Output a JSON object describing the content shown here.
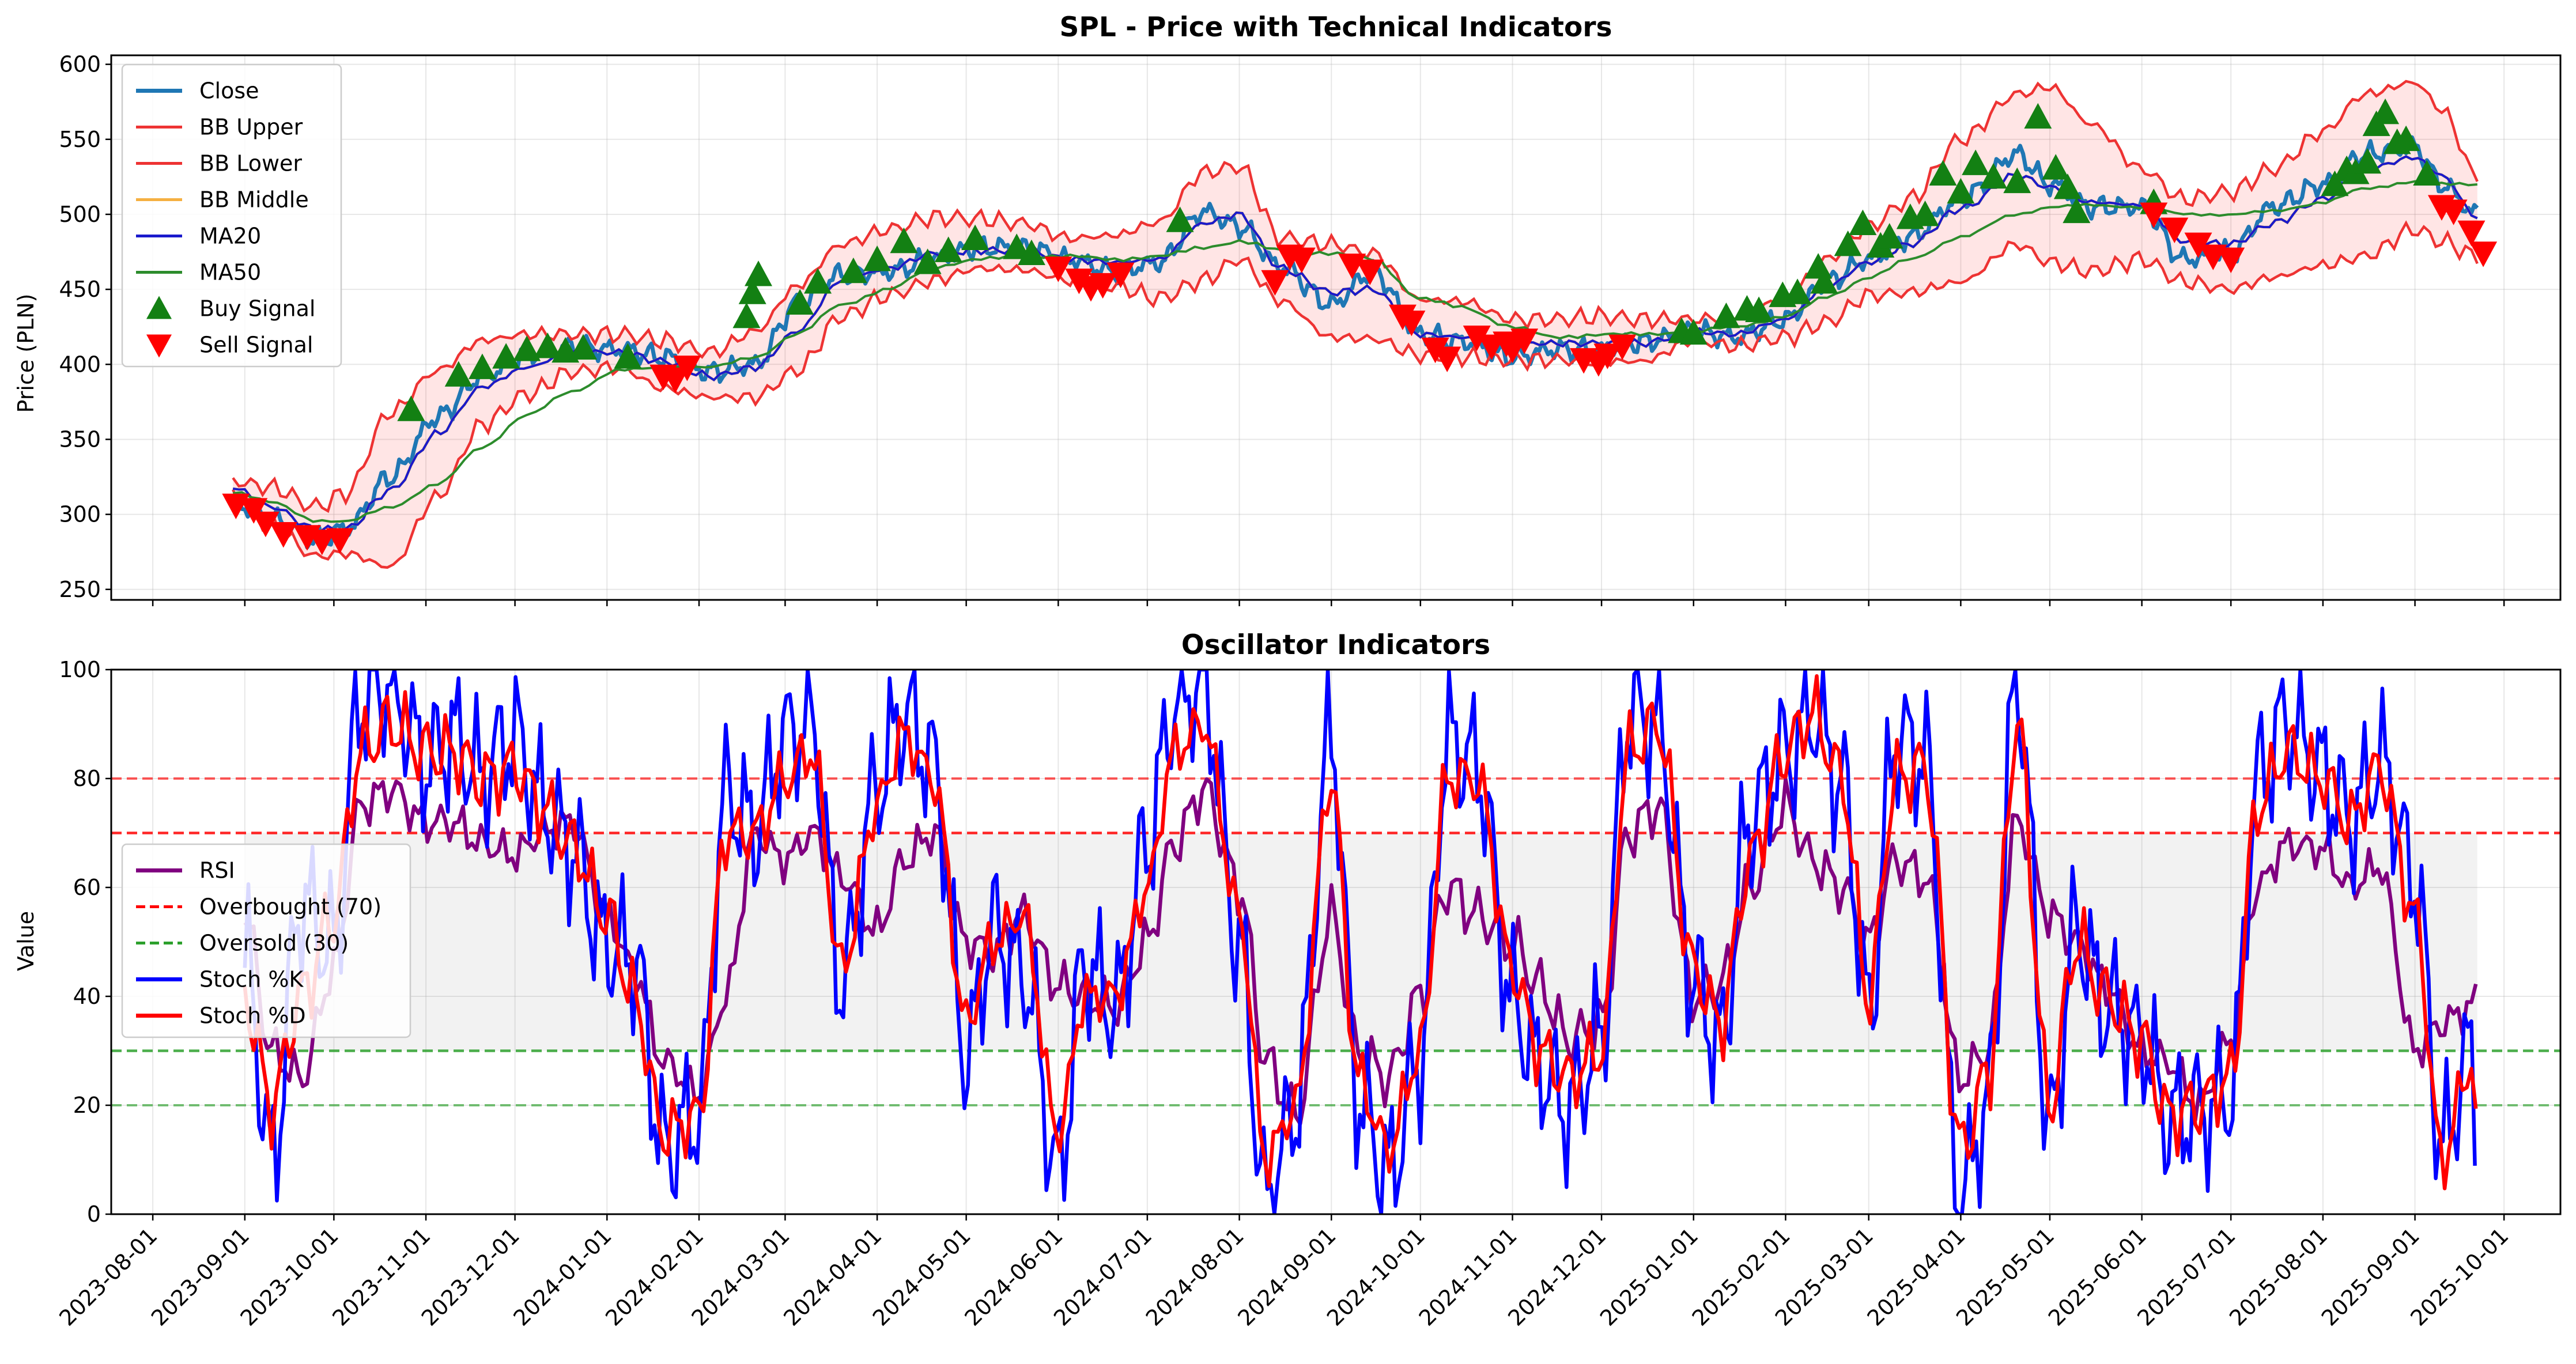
{
  "chart_data": [
    {
      "type": "line",
      "title": "SPL - Price with Technical Indicators",
      "ylabel": "Price (PLN)",
      "xlim": [
        "2023-07-18",
        "2025-10-20"
      ],
      "ylim": [
        243,
        606
      ],
      "yticks": [
        250,
        300,
        350,
        400,
        450,
        500,
        550,
        600
      ],
      "grid": true,
      "legend": "top-left",
      "anchors": {
        "dates": [
          "2023-08-28",
          "2023-09-10",
          "2023-09-25",
          "2023-10-05",
          "2023-10-20",
          "2023-11-05",
          "2023-11-20",
          "2023-12-05",
          "2023-12-20",
          "2024-01-05",
          "2024-01-20",
          "2024-02-05",
          "2024-02-20",
          "2024-03-05",
          "2024-03-20",
          "2024-04-05",
          "2024-04-20",
          "2024-05-05",
          "2024-05-20",
          "2024-06-05",
          "2024-06-20",
          "2024-07-05",
          "2024-07-20",
          "2024-08-01",
          "2024-08-15",
          "2024-09-01",
          "2024-09-15",
          "2024-10-01",
          "2024-10-15",
          "2024-11-01",
          "2024-11-15",
          "2024-12-01",
          "2024-12-15",
          "2025-01-01",
          "2025-01-15",
          "2025-02-01",
          "2025-02-15",
          "2025-03-01",
          "2025-03-15",
          "2025-04-01",
          "2025-04-20",
          "2025-05-01",
          "2025-05-15",
          "2025-06-01",
          "2025-06-15",
          "2025-07-01",
          "2025-07-15",
          "2025-08-01",
          "2025-08-15",
          "2025-09-01",
          "2025-09-10",
          "2025-09-22"
        ],
        "close": [
          308,
          298,
          283,
          290,
          325,
          365,
          392,
          407,
          411,
          410,
          405,
          395,
          400,
          440,
          460,
          462,
          470,
          478,
          478,
          470,
          462,
          468,
          502,
          492,
          465,
          440,
          462,
          420,
          415,
          405,
          410,
          410,
          415,
          422,
          418,
          430,
          455,
          470,
          485,
          510,
          540,
          520,
          505,
          505,
          470,
          475,
          505,
          520,
          540,
          545,
          520,
          500
        ],
        "bb_upper": [
          322,
          318,
          305,
          314,
          368,
          396,
          416,
          420,
          420,
          420,
          416,
          408,
          422,
          452,
          480,
          490,
          498,
          497,
          494,
          484,
          486,
          495,
          528,
          532,
          484,
          480,
          474,
          443,
          442,
          430,
          430,
          432,
          430,
          430,
          432,
          444,
          470,
          492,
          510,
          550,
          580,
          585,
          560,
          530,
          510,
          515,
          530,
          555,
          580,
          588,
          570,
          525
        ],
        "bb_lower": [
          313,
          292,
          272,
          274,
          265,
          312,
          360,
          380,
          395,
          398,
          384,
          378,
          378,
          396,
          432,
          446,
          456,
          464,
          463,
          456,
          452,
          444,
          456,
          470,
          442,
          418,
          417,
          406,
          405,
          403,
          403,
          402,
          402,
          416,
          412,
          418,
          428,
          446,
          448,
          455,
          480,
          468,
          462,
          470,
          455,
          450,
          458,
          466,
          472,
          490,
          482,
          472
        ],
        "ma20": [
          318,
          305,
          290,
          290,
          316,
          354,
          385,
          398,
          408,
          408,
          402,
          392,
          398,
          422,
          456,
          464,
          474,
          476,
          476,
          470,
          468,
          470,
          494,
          500,
          464,
          448,
          450,
          420,
          418,
          414,
          414,
          414,
          414,
          422,
          420,
          430,
          452,
          468,
          480,
          504,
          526,
          518,
          508,
          506,
          482,
          480,
          494,
          510,
          530,
          538,
          526,
          498
        ],
        "ma50": [
          315,
          308,
          296,
          295,
          305,
          320,
          345,
          366,
          382,
          396,
          398,
          398,
          405,
          420,
          440,
          450,
          465,
          470,
          472,
          472,
          470,
          472,
          478,
          482,
          476,
          474,
          470,
          444,
          438,
          425,
          418,
          420,
          420,
          422,
          425,
          432,
          445,
          458,
          470,
          485,
          500,
          505,
          506,
          505,
          500,
          500,
          502,
          508,
          517,
          522,
          520,
          520
        ],
        "buy": [
          [
            "2023-10-27",
            370
          ],
          [
            "2023-11-12",
            393
          ],
          [
            "2023-11-20",
            398
          ],
          [
            "2023-11-28",
            405
          ],
          [
            "2023-12-05",
            410
          ],
          [
            "2023-12-12",
            412
          ],
          [
            "2023-12-18",
            409
          ],
          [
            "2023-12-24",
            411
          ],
          [
            "2024-01-08",
            405
          ],
          [
            "2024-02-17",
            432
          ],
          [
            "2024-02-19",
            448
          ],
          [
            "2024-02-21",
            460
          ],
          [
            "2024-03-06",
            441
          ],
          [
            "2024-03-12",
            455
          ],
          [
            "2024-03-24",
            462
          ],
          [
            "2024-04-01",
            470
          ],
          [
            "2024-04-10",
            482
          ],
          [
            "2024-04-18",
            468
          ],
          [
            "2024-04-25",
            476
          ],
          [
            "2024-05-04",
            484
          ],
          [
            "2024-05-18",
            478
          ],
          [
            "2024-05-23",
            474
          ],
          [
            "2024-07-12",
            496
          ],
          [
            "2024-12-28",
            422
          ],
          [
            "2025-01-01",
            421
          ],
          [
            "2025-01-12",
            432
          ],
          [
            "2025-01-19",
            437
          ],
          [
            "2025-01-23",
            436
          ],
          [
            "2025-01-31",
            446
          ],
          [
            "2025-02-05",
            448
          ],
          [
            "2025-02-12",
            465
          ],
          [
            "2025-02-14",
            455
          ],
          [
            "2025-02-22",
            480
          ],
          [
            "2025-02-27",
            494
          ],
          [
            "2025-03-05",
            479
          ],
          [
            "2025-03-08",
            485
          ],
          [
            "2025-03-15",
            498
          ],
          [
            "2025-03-20",
            500
          ],
          [
            "2025-03-26",
            527
          ],
          [
            "2025-04-01",
            515
          ],
          [
            "2025-04-06",
            534
          ],
          [
            "2025-04-12",
            525
          ],
          [
            "2025-04-20",
            522
          ],
          [
            "2025-04-27",
            565
          ],
          [
            "2025-05-03",
            531
          ],
          [
            "2025-05-07",
            518
          ],
          [
            "2025-05-10",
            502
          ],
          [
            "2025-06-05",
            508
          ],
          [
            "2025-08-05",
            520
          ],
          [
            "2025-08-09",
            530
          ],
          [
            "2025-08-12",
            528
          ],
          [
            "2025-08-16",
            535
          ],
          [
            "2025-08-19",
            560
          ],
          [
            "2025-08-22",
            568
          ],
          [
            "2025-08-26",
            548
          ],
          [
            "2025-08-29",
            550
          ],
          [
            "2025-09-05",
            527
          ]
        ],
        "sell": [
          [
            "2023-08-29",
            306
          ],
          [
            "2023-09-04",
            303
          ],
          [
            "2023-09-08",
            294
          ],
          [
            "2023-09-14",
            287
          ],
          [
            "2023-09-22",
            285
          ],
          [
            "2023-09-27",
            282
          ],
          [
            "2023-10-03",
            283
          ],
          [
            "2024-01-20",
            392
          ],
          [
            "2024-01-24",
            390
          ],
          [
            "2024-01-28",
            398
          ],
          [
            "2024-06-01",
            464
          ],
          [
            "2024-06-08",
            456
          ],
          [
            "2024-06-12",
            451
          ],
          [
            "2024-06-16",
            453
          ],
          [
            "2024-06-22",
            460
          ],
          [
            "2024-08-13",
            455
          ],
          [
            "2024-08-18",
            472
          ],
          [
            "2024-08-22",
            470
          ],
          [
            "2024-09-08",
            466
          ],
          [
            "2024-09-14",
            462
          ],
          [
            "2024-09-25",
            432
          ],
          [
            "2024-09-28",
            428
          ],
          [
            "2024-10-06",
            410
          ],
          [
            "2024-10-10",
            404
          ],
          [
            "2024-10-20",
            418
          ],
          [
            "2024-10-25",
            412
          ],
          [
            "2024-10-30",
            414
          ],
          [
            "2024-11-01",
            410
          ],
          [
            "2024-11-05",
            416
          ],
          [
            "2024-11-25",
            403
          ],
          [
            "2024-11-30",
            401
          ],
          [
            "2024-12-03",
            406
          ],
          [
            "2024-12-08",
            412
          ],
          [
            "2025-06-05",
            500
          ],
          [
            "2025-06-12",
            490
          ],
          [
            "2025-06-20",
            480
          ],
          [
            "2025-06-25",
            472
          ],
          [
            "2025-07-01",
            470
          ],
          [
            "2025-09-10",
            505
          ],
          [
            "2025-09-14",
            502
          ],
          [
            "2025-09-20",
            488
          ],
          [
            "2025-09-24",
            474
          ]
        ]
      },
      "series": [
        {
          "name": "Close",
          "key": "close",
          "color": "#1f77b4"
        },
        {
          "name": "BB Upper",
          "key": "bb_upper",
          "color": "#ee3333"
        },
        {
          "name": "BB Lower",
          "key": "bb_lower",
          "color": "#ee3333"
        },
        {
          "name": "BB Middle",
          "key": "ma20",
          "color": "#f5b041"
        },
        {
          "name": "MA20",
          "key": "ma20",
          "color": "#1a1acc"
        },
        {
          "name": "MA50",
          "key": "ma50",
          "color": "#2c8c2c"
        },
        {
          "name": "Buy Signal",
          "key": "buy",
          "color": "#138013"
        },
        {
          "name": "Sell Signal",
          "key": "sell",
          "color": "#ff0000"
        }
      ]
    },
    {
      "type": "line",
      "title": "Oscillator Indicators",
      "ylabel": "Value",
      "ylim": [
        0,
        100
      ],
      "yticks": [
        0,
        20,
        40,
        60,
        80,
        100
      ],
      "grid": true,
      "legend": "center-left",
      "anchors": {
        "dates": [
          "2023-09-01",
          "2023-09-10",
          "2023-09-20",
          "2023-10-01",
          "2023-10-10",
          "2023-10-20",
          "2023-11-01",
          "2023-11-10",
          "2023-11-20",
          "2023-12-01",
          "2023-12-10",
          "2023-12-20",
          "2024-01-01",
          "2024-01-10",
          "2024-01-20",
          "2024-02-01",
          "2024-02-10",
          "2024-02-20",
          "2024-03-01",
          "2024-03-10",
          "2024-03-20",
          "2024-04-01",
          "2024-04-10",
          "2024-04-20",
          "2024-05-01",
          "2024-05-10",
          "2024-05-20",
          "2024-06-01",
          "2024-06-10",
          "2024-06-20",
          "2024-07-01",
          "2024-07-10",
          "2024-07-20",
          "2024-08-01",
          "2024-08-10",
          "2024-08-20",
          "2024-09-01",
          "2024-09-10",
          "2024-09-20",
          "2024-10-01",
          "2024-10-10",
          "2024-10-20",
          "2024-11-01",
          "2024-11-10",
          "2024-11-20",
          "2024-12-01",
          "2024-12-10",
          "2024-12-20",
          "2025-01-01",
          "2025-01-10",
          "2025-01-20",
          "2025-02-01",
          "2025-02-10",
          "2025-02-20",
          "2025-03-01",
          "2025-03-10",
          "2025-03-20",
          "2025-04-01",
          "2025-04-10",
          "2025-04-20",
          "2025-05-01",
          "2025-05-10",
          "2025-05-20",
          "2025-06-01",
          "2025-06-10",
          "2025-06-20",
          "2025-07-01",
          "2025-07-10",
          "2025-07-20",
          "2025-08-01",
          "2025-08-10",
          "2025-08-20",
          "2025-09-01",
          "2025-09-10",
          "2025-09-20",
          "2025-09-22"
        ],
        "rsi": [
          55,
          30,
          25,
          45,
          75,
          78,
          72,
          72,
          68,
          66,
          70,
          72,
          55,
          45,
          28,
          22,
          40,
          70,
          65,
          70,
          62,
          52,
          65,
          70,
          50,
          48,
          55,
          42,
          40,
          38,
          50,
          68,
          78,
          60,
          28,
          18,
          55,
          30,
          25,
          40,
          60,
          55,
          50,
          42,
          32,
          35,
          70,
          75,
          40,
          42,
          60,
          75,
          65,
          60,
          50,
          65,
          62,
          25,
          30,
          72,
          55,
          50,
          42,
          30,
          28,
          20,
          32,
          60,
          68,
          67,
          60,
          64,
          30,
          35,
          38,
          40
        ],
        "stoch_k": [
          45,
          10,
          60,
          50,
          92,
          95,
          85,
          90,
          80,
          85,
          75,
          70,
          50,
          45,
          10,
          20,
          80,
          70,
          85,
          90,
          45,
          80,
          90,
          80,
          30,
          55,
          45,
          5,
          45,
          40,
          70,
          92,
          95,
          50,
          5,
          20,
          85,
          20,
          10,
          30,
          85,
          80,
          40,
          30,
          20,
          30,
          90,
          92,
          45,
          30,
          70,
          85,
          95,
          80,
          35,
          85,
          85,
          5,
          20,
          95,
          15,
          55,
          40,
          30,
          15,
          20,
          25,
          80,
          88,
          80,
          75,
          85,
          60,
          10,
          30,
          20
        ],
        "stoch_d": [
          40,
          20,
          40,
          55,
          85,
          90,
          85,
          85,
          80,
          82,
          75,
          68,
          55,
          40,
          15,
          18,
          70,
          70,
          80,
          85,
          45,
          75,
          88,
          80,
          35,
          50,
          55,
          15,
          40,
          40,
          60,
          85,
          90,
          55,
          10,
          20,
          80,
          25,
          12,
          30,
          80,
          80,
          45,
          30,
          25,
          30,
          85,
          90,
          45,
          35,
          65,
          85,
          92,
          80,
          40,
          80,
          82,
          12,
          25,
          90,
          20,
          50,
          40,
          32,
          18,
          20,
          25,
          75,
          85,
          80,
          72,
          82,
          55,
          10,
          28,
          15
        ]
      },
      "series": [
        {
          "name": "RSI",
          "key": "rsi",
          "color": "#800080"
        },
        {
          "name": "Overbought (70)",
          "value": 70,
          "color": "#ff0000"
        },
        {
          "name": "Oversold (30)",
          "value": 30,
          "color": "#2ca02c"
        },
        {
          "name": "Stoch %K",
          "key": "stoch_k",
          "color": "#0000ff"
        },
        {
          "name": "Stoch %D",
          "key": "stoch_d",
          "color": "#ff0000"
        }
      ],
      "reference_lines": [
        80,
        20
      ]
    }
  ],
  "x_ticks": [
    "2023-08-01",
    "2023-09-01",
    "2023-10-01",
    "2023-11-01",
    "2023-12-01",
    "2024-01-01",
    "2024-02-01",
    "2024-03-01",
    "2024-04-01",
    "2024-05-01",
    "2024-06-01",
    "2024-07-01",
    "2024-08-01",
    "2024-09-01",
    "2024-10-01",
    "2024-11-01",
    "2024-12-01",
    "2025-01-01",
    "2025-02-01",
    "2025-03-01",
    "2025-04-01",
    "2025-05-01",
    "2025-06-01",
    "2025-07-01",
    "2025-08-01",
    "2025-09-01",
    "2025-10-01"
  ]
}
